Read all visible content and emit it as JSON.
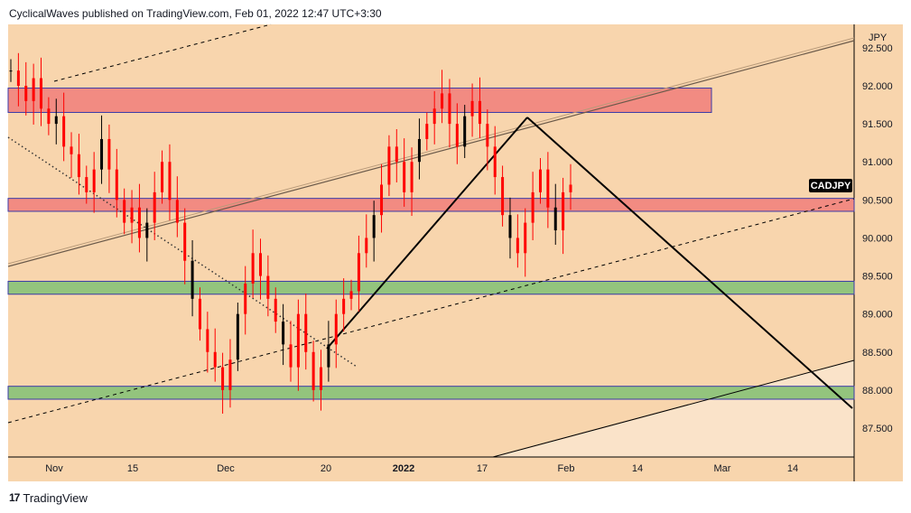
{
  "header": {
    "text": "CyclicalWaves published on TradingView.com, Feb 01, 2022 12:47 UTC+3:30"
  },
  "footer": {
    "brand": "TradingView"
  },
  "chart_data": {
    "type": "candlestick",
    "symbol": "CADJPY",
    "currency": "JPY",
    "y_axis": {
      "ticks": [
        "92.500",
        "92.000",
        "91.500",
        "91.000",
        "90.500",
        "90.000",
        "89.500",
        "89.000",
        "88.500",
        "88.000",
        "87.500"
      ],
      "range": [
        87.2,
        92.7
      ]
    },
    "x_axis": {
      "ticks": [
        "Nov",
        "15",
        "Dec",
        "20",
        "2022",
        "17",
        "Feb",
        "14",
        "Mar",
        "14"
      ]
    },
    "last_price_label": "CADJPY",
    "last_price": 90.7,
    "zones": [
      {
        "kind": "resistance",
        "from": 91.65,
        "to": 91.97,
        "color": "#f28b82"
      },
      {
        "kind": "resistance",
        "from": 90.35,
        "to": 90.52,
        "color": "#f28b82"
      },
      {
        "kind": "support",
        "from": 89.26,
        "to": 89.43,
        "color": "#93c47d"
      },
      {
        "kind": "support",
        "from": 87.88,
        "to": 88.05,
        "color": "#93c47d"
      }
    ],
    "price_path_close": [
      92.2,
      92.0,
      91.8,
      92.1,
      91.7,
      91.5,
      91.6,
      91.2,
      91.1,
      90.8,
      90.6,
      90.9,
      91.3,
      90.9,
      90.5,
      90.2,
      90.4,
      90.0,
      90.2,
      90.6,
      91.0,
      90.5,
      90.2,
      89.7,
      89.2,
      88.8,
      88.5,
      88.3,
      88.0,
      88.4,
      89.0,
      89.4,
      89.8,
      89.5,
      89.2,
      88.9,
      88.6,
      88.3,
      89.0,
      88.5,
      88.0,
      88.3,
      88.6,
      89.0,
      89.2,
      89.3,
      89.8,
      90.0,
      90.3,
      90.7,
      91.2,
      91.0,
      90.6,
      91.0,
      91.3,
      91.5,
      91.7,
      91.9,
      91.5,
      91.2,
      91.6,
      91.8,
      91.5,
      91.2,
      90.8,
      90.3,
      90.0,
      89.8,
      90.2,
      90.6,
      90.9,
      90.4,
      90.1,
      90.6,
      90.7
    ]
  },
  "colors": {
    "plot_bg": "#f8d5ad",
    "plot_bg_light": "#fae3c9",
    "candle": "#ff0000",
    "candle_dark": "#000000"
  }
}
